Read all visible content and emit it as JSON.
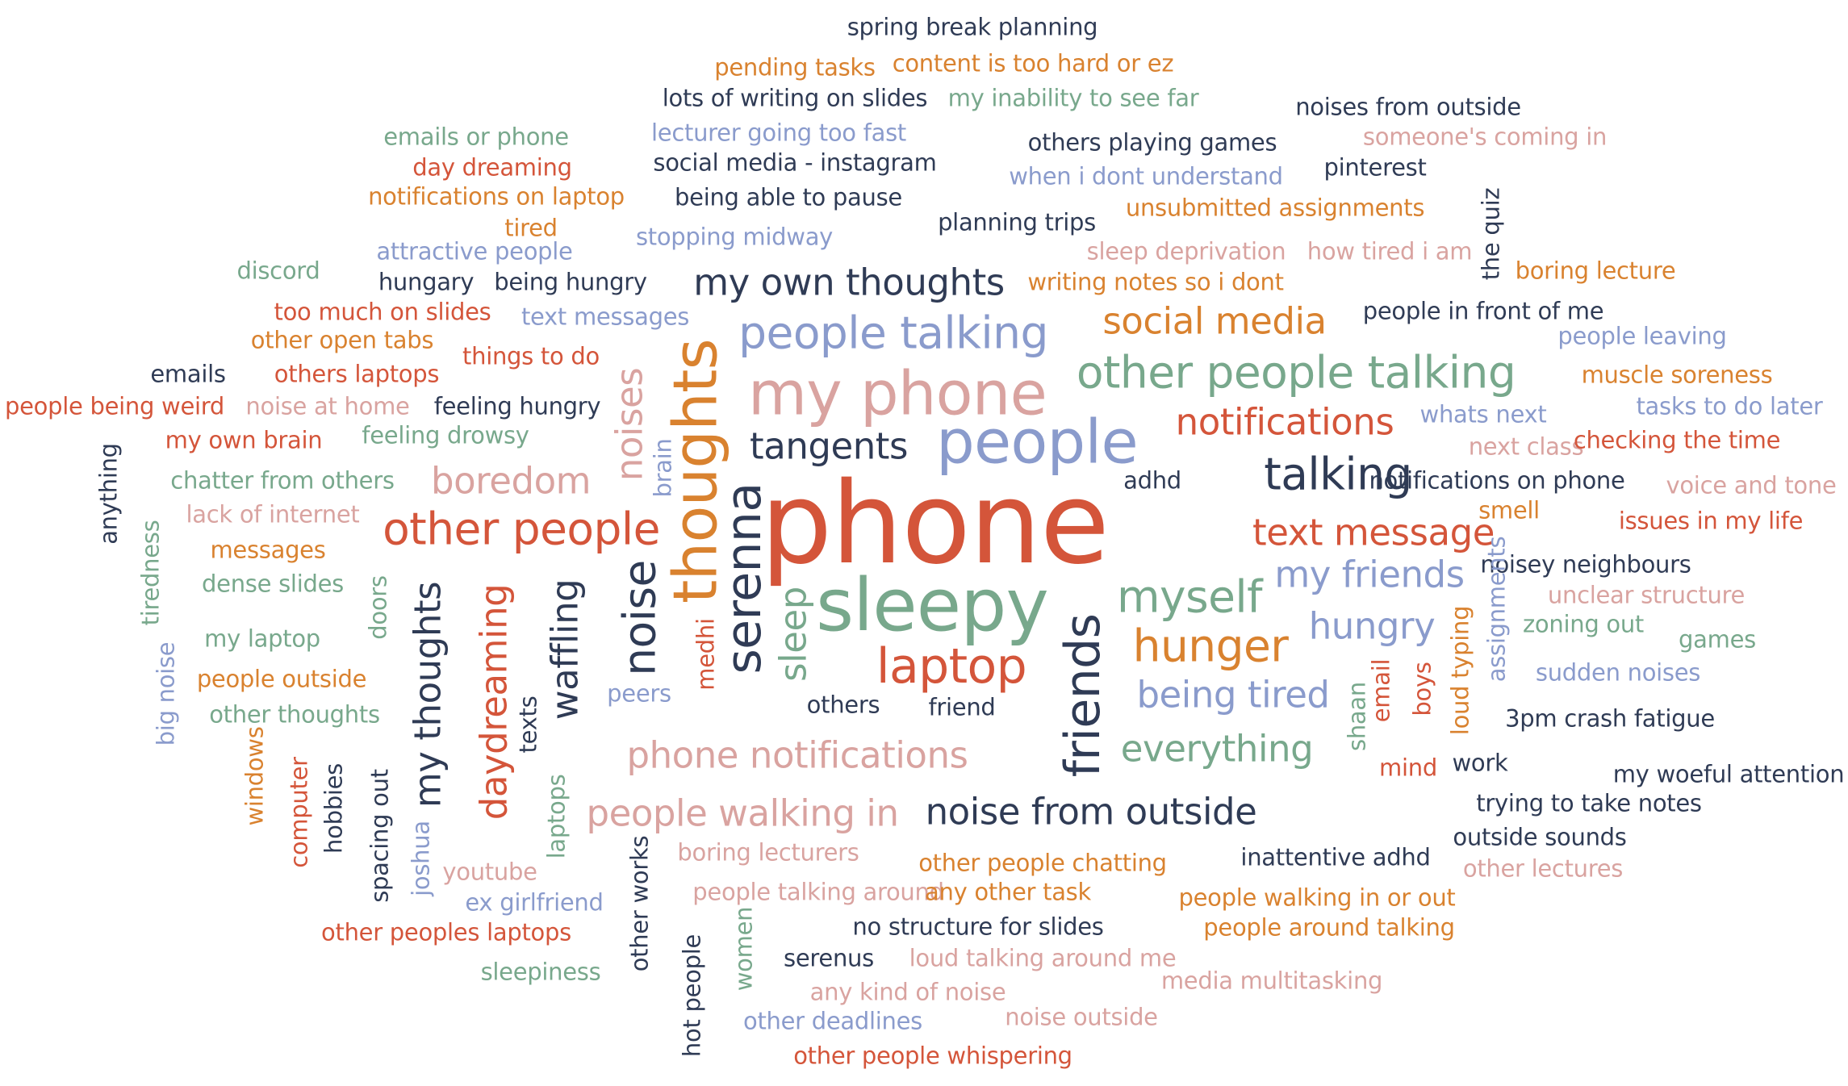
{
  "palette": {
    "dark": "#2f3b55",
    "red": "#d4553a",
    "orange": "#d9822f",
    "pink": "#d9a3a0",
    "sage": "#78a88c",
    "blue": "#8a9bcc"
  },
  "words": [
    {
      "t": "spring break planning",
      "c": "dark",
      "w": 3
    },
    {
      "t": "pending tasks",
      "c": "orange",
      "w": 3
    },
    {
      "t": "content is too hard or ez",
      "c": "orange",
      "w": 3
    },
    {
      "t": "lots of writing on slides",
      "c": "dark",
      "w": 3
    },
    {
      "t": "my inability to see far",
      "c": "sage",
      "w": 3
    },
    {
      "t": "noises from outside",
      "c": "dark",
      "w": 3
    },
    {
      "t": "emails or phone",
      "c": "sage",
      "w": 3
    },
    {
      "t": "lecturer going too fast",
      "c": "blue",
      "w": 3
    },
    {
      "t": "others playing games",
      "c": "dark",
      "w": 3
    },
    {
      "t": "someone's coming in",
      "c": "pink",
      "w": 3
    },
    {
      "t": "day dreaming",
      "c": "red",
      "w": 3
    },
    {
      "t": "social media - instagram",
      "c": "dark",
      "w": 3
    },
    {
      "t": "when i dont understand",
      "c": "blue",
      "w": 3
    },
    {
      "t": "pinterest",
      "c": "dark",
      "w": 3
    },
    {
      "t": "notifications on laptop",
      "c": "orange",
      "w": 3
    },
    {
      "t": "being able to pause",
      "c": "dark",
      "w": 3
    },
    {
      "t": "tired",
      "c": "orange",
      "w": 3
    },
    {
      "t": "unsubmitted assignments",
      "c": "orange",
      "w": 3
    },
    {
      "t": "the quiz",
      "c": "dark",
      "w": 3
    },
    {
      "t": "planning trips",
      "c": "dark",
      "w": 3
    },
    {
      "t": "stopping midway",
      "c": "blue",
      "w": 3
    },
    {
      "t": "attractive people",
      "c": "blue",
      "w": 3
    },
    {
      "t": "sleep deprivation",
      "c": "pink",
      "w": 3
    },
    {
      "t": "how tired i am",
      "c": "pink",
      "w": 3
    },
    {
      "t": "discord",
      "c": "sage",
      "w": 3
    },
    {
      "t": "boring lecture",
      "c": "orange",
      "w": 3
    },
    {
      "t": "hungary",
      "c": "dark",
      "w": 3
    },
    {
      "t": "being hungry",
      "c": "dark",
      "w": 3
    },
    {
      "t": "my own thoughts",
      "c": "dark",
      "w": 5
    },
    {
      "t": "writing notes so i dont",
      "c": "orange",
      "w": 3
    },
    {
      "t": "too much on slides",
      "c": "red",
      "w": 3
    },
    {
      "t": "text messages",
      "c": "blue",
      "w": 3
    },
    {
      "t": "social media",
      "c": "orange",
      "w": 5
    },
    {
      "t": "people in front of me",
      "c": "dark",
      "w": 3
    },
    {
      "t": "people talking",
      "c": "blue",
      "w": 6
    },
    {
      "t": "other open tabs",
      "c": "orange",
      "w": 3
    },
    {
      "t": "things to do",
      "c": "red",
      "w": 3
    },
    {
      "t": "people leaving",
      "c": "blue",
      "w": 3
    },
    {
      "t": "emails",
      "c": "dark",
      "w": 3
    },
    {
      "t": "others laptops",
      "c": "red",
      "w": 3
    },
    {
      "t": "other people talking",
      "c": "sage",
      "w": 6
    },
    {
      "t": "muscle soreness",
      "c": "orange",
      "w": 3
    },
    {
      "t": "my phone",
      "c": "pink",
      "w": 8
    },
    {
      "t": "people being weird",
      "c": "red",
      "w": 3
    },
    {
      "t": "noise at home",
      "c": "pink",
      "w": 3
    },
    {
      "t": "feeling hungry",
      "c": "dark",
      "w": 3
    },
    {
      "t": "tasks to do later",
      "c": "blue",
      "w": 3
    },
    {
      "t": "noises",
      "c": "pink",
      "w": 5
    },
    {
      "t": "notifications",
      "c": "red",
      "w": 5
    },
    {
      "t": "whats next",
      "c": "blue",
      "w": 3
    },
    {
      "t": "my own brain",
      "c": "red",
      "w": 3
    },
    {
      "t": "feeling drowsy",
      "c": "sage",
      "w": 3
    },
    {
      "t": "thoughts",
      "c": "orange",
      "w": 8
    },
    {
      "t": "tangents",
      "c": "dark",
      "w": 5
    },
    {
      "t": "people",
      "c": "blue",
      "w": 8
    },
    {
      "t": "next class",
      "c": "pink",
      "w": 3
    },
    {
      "t": "checking the time",
      "c": "red",
      "w": 3
    },
    {
      "t": "anything",
      "c": "dark",
      "w": 3
    },
    {
      "t": "brain",
      "c": "blue",
      "w": 3
    },
    {
      "t": "chatter from others",
      "c": "sage",
      "w": 3
    },
    {
      "t": "boredom",
      "c": "pink",
      "w": 5
    },
    {
      "t": "adhd",
      "c": "dark",
      "w": 3
    },
    {
      "t": "talking",
      "c": "dark",
      "w": 6
    },
    {
      "t": "notifications on phone",
      "c": "dark",
      "w": 3
    },
    {
      "t": "voice and tone",
      "c": "pink",
      "w": 3
    },
    {
      "t": "lack of internet",
      "c": "pink",
      "w": 3
    },
    {
      "t": "serenna",
      "c": "dark",
      "w": 7
    },
    {
      "t": "phone",
      "c": "red",
      "w": 10
    },
    {
      "t": "smell",
      "c": "orange",
      "w": 3
    },
    {
      "t": "issues in my life",
      "c": "red",
      "w": 3
    },
    {
      "t": "tiredness",
      "c": "sage",
      "w": 3
    },
    {
      "t": "other people",
      "c": "red",
      "w": 6
    },
    {
      "t": "messages",
      "c": "orange",
      "w": 5
    },
    {
      "t": "text message",
      "c": "red",
      "w": 3
    },
    {
      "t": "noisey neighbours",
      "c": "dark",
      "w": 3
    },
    {
      "t": "dense slides",
      "c": "sage",
      "w": 3
    },
    {
      "t": "my friends",
      "c": "blue",
      "w": 5
    },
    {
      "t": "assignments",
      "c": "blue",
      "w": 3
    },
    {
      "t": "unclear structure",
      "c": "pink",
      "w": 3
    },
    {
      "t": "noise",
      "c": "dark",
      "w": 6
    },
    {
      "t": "doors",
      "c": "sage",
      "w": 3
    },
    {
      "t": "myself",
      "c": "sage",
      "w": 6
    },
    {
      "t": "sleepy",
      "c": "sage",
      "w": 8
    },
    {
      "t": "my thoughts",
      "c": "dark",
      "w": 5
    },
    {
      "t": "waffling",
      "c": "dark",
      "w": 5
    },
    {
      "t": "zoning out",
      "c": "sage",
      "w": 3
    },
    {
      "t": "games",
      "c": "sage",
      "w": 3
    },
    {
      "t": "hungry",
      "c": "blue",
      "w": 5
    },
    {
      "t": "my laptop",
      "c": "sage",
      "w": 3
    },
    {
      "t": "friends",
      "c": "dark",
      "w": 7
    },
    {
      "t": "loud typing",
      "c": "orange",
      "w": 3
    },
    {
      "t": "daydreaming",
      "c": "red",
      "w": 5
    },
    {
      "t": "sleep",
      "c": "sage",
      "w": 5
    },
    {
      "t": "medhi",
      "c": "red",
      "w": 3
    },
    {
      "t": "hunger",
      "c": "orange",
      "w": 6
    },
    {
      "t": "sudden noises",
      "c": "blue",
      "w": 3
    },
    {
      "t": "people outside",
      "c": "orange",
      "w": 3
    },
    {
      "t": "big noise",
      "c": "blue",
      "w": 3
    },
    {
      "t": "peers",
      "c": "blue",
      "w": 3
    },
    {
      "t": "laptop",
      "c": "red",
      "w": 7
    },
    {
      "t": "email",
      "c": "red",
      "w": 3
    },
    {
      "t": "boys",
      "c": "red",
      "w": 3
    },
    {
      "t": "other thoughts",
      "c": "sage",
      "w": 3
    },
    {
      "t": "others",
      "c": "dark",
      "w": 3
    },
    {
      "t": "friend",
      "c": "dark",
      "w": 3
    },
    {
      "t": "being tired",
      "c": "blue",
      "w": 5
    },
    {
      "t": "shaan",
      "c": "sage",
      "w": 3
    },
    {
      "t": "3pm crash fatigue",
      "c": "dark",
      "w": 3
    },
    {
      "t": "texts",
      "c": "dark",
      "w": 3
    },
    {
      "t": "windows",
      "c": "orange",
      "w": 3
    },
    {
      "t": "hobbies",
      "c": "dark",
      "w": 3
    },
    {
      "t": "computer",
      "c": "red",
      "w": 3
    },
    {
      "t": "phone notifications",
      "c": "pink",
      "w": 6
    },
    {
      "t": "everything",
      "c": "sage",
      "w": 5
    },
    {
      "t": "mind",
      "c": "red",
      "w": 3
    },
    {
      "t": "work",
      "c": "dark",
      "w": 3
    },
    {
      "t": "my woeful attention",
      "c": "dark",
      "w": 3
    },
    {
      "t": "spacing out",
      "c": "dark",
      "w": 3
    },
    {
      "t": "laptops",
      "c": "sage",
      "w": 3
    },
    {
      "t": "trying to take notes",
      "c": "dark",
      "w": 3
    },
    {
      "t": "people walking in",
      "c": "pink",
      "w": 5
    },
    {
      "t": "noise from outside",
      "c": "dark",
      "w": 5
    },
    {
      "t": "outside sounds",
      "c": "dark",
      "w": 3
    },
    {
      "t": "joshua",
      "c": "blue",
      "w": 3
    },
    {
      "t": "boring lecturers",
      "c": "pink",
      "w": 3
    },
    {
      "t": "other people chatting",
      "c": "orange",
      "w": 3
    },
    {
      "t": "inattentive adhd",
      "c": "dark",
      "w": 3
    },
    {
      "t": "other lectures",
      "c": "pink",
      "w": 3
    },
    {
      "t": "youtube",
      "c": "pink",
      "w": 3
    },
    {
      "t": "other works",
      "c": "dark",
      "w": 3
    },
    {
      "t": "people talking around",
      "c": "pink",
      "w": 3
    },
    {
      "t": "any other task",
      "c": "orange",
      "w": 3
    },
    {
      "t": "people walking in or out",
      "c": "orange",
      "w": 3
    },
    {
      "t": "ex girlfriend",
      "c": "blue",
      "w": 3
    },
    {
      "t": "no structure for slides",
      "c": "dark",
      "w": 3
    },
    {
      "t": "people around talking",
      "c": "orange",
      "w": 3
    },
    {
      "t": "other peoples laptops",
      "c": "red",
      "w": 3
    },
    {
      "t": "women",
      "c": "sage",
      "w": 3
    },
    {
      "t": "serenus",
      "c": "dark",
      "w": 3
    },
    {
      "t": "loud talking around me",
      "c": "pink",
      "w": 3
    },
    {
      "t": "sleepiness",
      "c": "sage",
      "w": 3
    },
    {
      "t": "media multitasking",
      "c": "pink",
      "w": 3
    },
    {
      "t": "any kind of noise",
      "c": "pink",
      "w": 3
    },
    {
      "t": "hot people",
      "c": "dark",
      "w": 3
    },
    {
      "t": "other deadlines",
      "c": "blue",
      "w": 3
    },
    {
      "t": "noise outside",
      "c": "pink",
      "w": 3
    },
    {
      "t": "other people whispering",
      "c": "red",
      "w": 3
    }
  ]
}
